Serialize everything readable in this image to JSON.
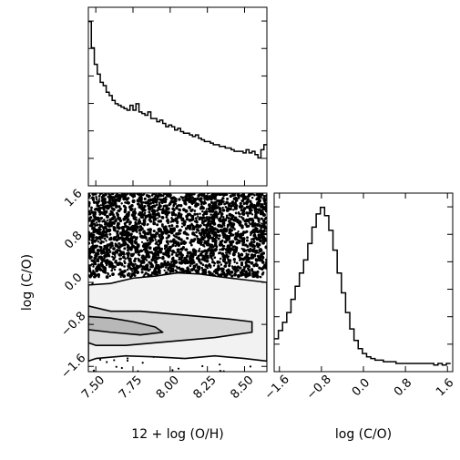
{
  "chart_data": [
    {
      "type": "histogram",
      "panel": "top-left",
      "variable": "12 + log (O/H)",
      "xlim": [
        7.45,
        8.65
      ],
      "x_ticks": [
        7.5,
        7.75,
        8.0,
        8.25,
        8.5
      ],
      "y_tick_count": 6,
      "tick_labels_shown": false,
      "bin_edges": [
        7.45,
        7.47,
        7.49,
        7.51,
        7.53,
        7.55,
        7.57,
        7.59,
        7.61,
        7.63,
        7.65,
        7.67,
        7.69,
        7.71,
        7.73,
        7.75,
        7.77,
        7.79,
        7.81,
        7.83,
        7.85,
        7.87,
        7.89,
        7.91,
        7.93,
        7.95,
        7.97,
        7.99,
        8.01,
        8.03,
        8.05,
        8.07,
        8.09,
        8.11,
        8.13,
        8.15,
        8.17,
        8.19,
        8.21,
        8.23,
        8.25,
        8.27,
        8.29,
        8.31,
        8.33,
        8.35,
        8.37,
        8.39,
        8.41,
        8.43,
        8.45,
        8.47,
        8.49,
        8.51,
        8.53,
        8.55,
        8.57,
        8.59,
        8.61,
        8.63,
        8.65
      ],
      "relative_counts": [
        1.0,
        0.84,
        0.74,
        0.68,
        0.63,
        0.61,
        0.57,
        0.55,
        0.52,
        0.5,
        0.49,
        0.48,
        0.47,
        0.46,
        0.49,
        0.46,
        0.5,
        0.45,
        0.44,
        0.43,
        0.45,
        0.41,
        0.41,
        0.39,
        0.4,
        0.38,
        0.36,
        0.37,
        0.36,
        0.34,
        0.35,
        0.33,
        0.32,
        0.32,
        0.31,
        0.3,
        0.31,
        0.29,
        0.28,
        0.27,
        0.27,
        0.26,
        0.25,
        0.25,
        0.24,
        0.24,
        0.23,
        0.23,
        0.22,
        0.21,
        0.21,
        0.21,
        0.2,
        0.22,
        0.2,
        0.21,
        0.19,
        0.17,
        0.22,
        0.25
      ]
    },
    {
      "type": "contour",
      "panel": "bottom-left",
      "x_label": "12 + log (O/H)",
      "y_label": "log (C/O)",
      "xlim": [
        7.45,
        8.65
      ],
      "ylim": [
        -1.7,
        1.7
      ],
      "x_ticks": [
        7.5,
        7.75,
        8.0,
        8.25,
        8.5
      ],
      "x_tick_labels": [
        "7.50",
        "7.75",
        "8.00",
        "8.25",
        "8.50"
      ],
      "y_ticks": [
        -1.6,
        -0.8,
        0.0,
        0.8,
        1.6
      ],
      "y_tick_labels": [
        "−1.6",
        "−0.8",
        "0.0",
        "0.8",
        "1.6"
      ],
      "scatter_region": "dense points for log (C/O) > 0.1, sparse below",
      "contour_levels": 3,
      "contours": [
        {
          "level": 1,
          "x": [
            7.45,
            7.6,
            7.75,
            7.9,
            8.05,
            8.2,
            8.35,
            8.5,
            8.65,
            8.65,
            8.5,
            8.3,
            8.1,
            7.9,
            7.7,
            7.5,
            7.45
          ],
          "y": [
            -0.05,
            -0.02,
            0.08,
            0.12,
            0.18,
            0.16,
            0.1,
            0.05,
            0.0,
            -1.5,
            -1.45,
            -1.4,
            -1.45,
            -1.42,
            -1.4,
            -1.45,
            -1.5
          ]
        },
        {
          "level": 2,
          "x": [
            7.45,
            7.6,
            7.8,
            8.0,
            8.2,
            8.4,
            8.55,
            8.55,
            8.3,
            8.1,
            7.9,
            7.7,
            7.5,
            7.45
          ],
          "y": [
            -0.45,
            -0.55,
            -0.55,
            -0.6,
            -0.65,
            -0.7,
            -0.75,
            -0.95,
            -1.05,
            -1.1,
            -1.15,
            -1.2,
            -1.2,
            -1.15
          ]
        },
        {
          "level": 3,
          "x": [
            7.45,
            7.6,
            7.75,
            7.9,
            7.95,
            7.8,
            7.6,
            7.45
          ],
          "y": [
            -0.65,
            -0.68,
            -0.75,
            -0.85,
            -0.95,
            -1.0,
            -0.95,
            -0.9
          ]
        }
      ]
    },
    {
      "type": "histogram",
      "panel": "bottom-right",
      "variable": "log (C/O)",
      "x_label": "log (C/O)",
      "xlim": [
        -1.7,
        1.7
      ],
      "x_ticks": [
        -1.6,
        -0.8,
        0.0,
        0.8,
        1.6
      ],
      "x_tick_labels": [
        "−1.6",
        "−0.8",
        "0.0",
        "0.8",
        "1.6"
      ],
      "y_tick_count": 6,
      "bin_edges": [
        -1.7,
        -1.62,
        -1.54,
        -1.46,
        -1.38,
        -1.3,
        -1.22,
        -1.14,
        -1.06,
        -0.98,
        -0.9,
        -0.82,
        -0.74,
        -0.66,
        -0.58,
        -0.5,
        -0.42,
        -0.34,
        -0.26,
        -0.18,
        -0.1,
        -0.02,
        0.06,
        0.14,
        0.22,
        0.3,
        0.38,
        0.46,
        0.54,
        0.62,
        0.7,
        0.78,
        0.86,
        0.94,
        1.02,
        1.1,
        1.18,
        1.26,
        1.34,
        1.42,
        1.5,
        1.58,
        1.66
      ],
      "relative_counts": [
        0.2,
        0.25,
        0.3,
        0.36,
        0.44,
        0.52,
        0.6,
        0.68,
        0.78,
        0.88,
        0.96,
        1.0,
        0.95,
        0.86,
        0.74,
        0.6,
        0.48,
        0.36,
        0.26,
        0.19,
        0.14,
        0.11,
        0.09,
        0.08,
        0.07,
        0.07,
        0.06,
        0.06,
        0.06,
        0.05,
        0.05,
        0.05,
        0.05,
        0.05,
        0.05,
        0.05,
        0.05,
        0.05,
        0.04,
        0.05,
        0.04,
        0.05
      ]
    }
  ]
}
